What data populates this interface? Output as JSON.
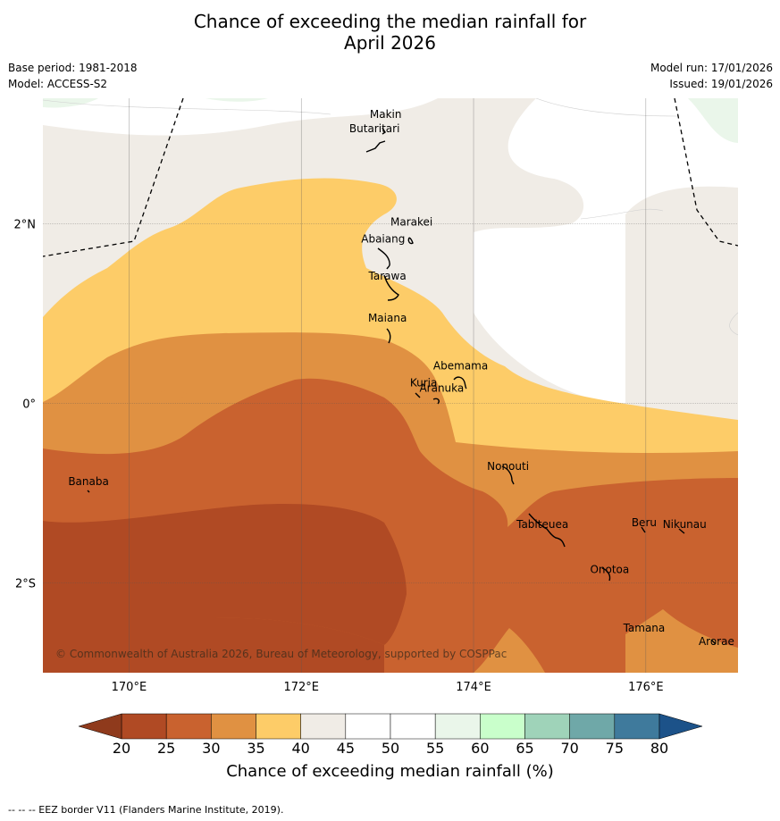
{
  "title": {
    "line1": "Chance of exceeding the median rainfall for",
    "line2": "April 2026"
  },
  "meta": {
    "base_period": "Base period: 1981-2018",
    "model": "Model: ACCESS-S2",
    "model_run": "Model run: 17/01/2026",
    "issued": "Issued: 19/01/2026"
  },
  "axes": {
    "lon_ticks": [
      {
        "value": 170,
        "label": "170°E"
      },
      {
        "value": 172,
        "label": "172°E"
      },
      {
        "value": 174,
        "label": "174°E"
      },
      {
        "value": 176,
        "label": "176°E"
      }
    ],
    "lat_ticks": [
      {
        "value": 2,
        "label": "2°N"
      },
      {
        "value": 0,
        "label": "0°"
      },
      {
        "value": -2,
        "label": "2°S"
      }
    ]
  },
  "places": [
    {
      "name": "Makin",
      "lon": 172.98,
      "lat": 3.22
    },
    {
      "name": "Butaritari",
      "lon": 172.85,
      "lat": 3.06
    },
    {
      "name": "Marakei",
      "lon": 173.28,
      "lat": 2.02
    },
    {
      "name": "Abaiang",
      "lon": 172.95,
      "lat": 1.83
    },
    {
      "name": "Tarawa",
      "lon": 173.0,
      "lat": 1.42
    },
    {
      "name": "Maiana",
      "lon": 173.0,
      "lat": 0.95
    },
    {
      "name": "Abemama",
      "lon": 173.85,
      "lat": 0.42
    },
    {
      "name": "Kuria",
      "lon": 173.42,
      "lat": 0.23
    },
    {
      "name": "Aranuka",
      "lon": 173.63,
      "lat": 0.17
    },
    {
      "name": "Nonouti",
      "lon": 174.4,
      "lat": -0.7
    },
    {
      "name": "Banaba",
      "lon": 169.53,
      "lat": -0.87
    },
    {
      "name": "Tabiteuea",
      "lon": 174.8,
      "lat": -1.35
    },
    {
      "name": "Beru",
      "lon": 175.98,
      "lat": -1.33
    },
    {
      "name": "Nikunau",
      "lon": 176.45,
      "lat": -1.35
    },
    {
      "name": "Onotoa",
      "lon": 175.58,
      "lat": -1.85
    },
    {
      "name": "Tamana",
      "lon": 175.98,
      "lat": -2.5
    },
    {
      "name": "Arorae",
      "lon": 176.82,
      "lat": -2.65
    }
  ],
  "colorbar": {
    "ticks": [
      "20",
      "25",
      "30",
      "35",
      "40",
      "45",
      "50",
      "55",
      "60",
      "65",
      "70",
      "75",
      "80"
    ],
    "colors": [
      "#b04a24",
      "#c9622f",
      "#e09142",
      "#fdcc68",
      "#f0ece6",
      "#ffffff",
      "#ffffff",
      "#eaf6ea",
      "#c9ffcb",
      "#9fd3b9",
      "#6fa8a8",
      "#3f7a9c"
    ],
    "under_color": "#8f3a1c",
    "over_color": "#1c5289",
    "label": "Chance of exceeding median rainfall (%)"
  },
  "copyright": "© Commonwealth of Australia 2026, Bureau of Meteorology, supported by COSPPac",
  "footer": "--  --  -- EEZ border V11 (Flanders Marine Institute, 2019)."
}
